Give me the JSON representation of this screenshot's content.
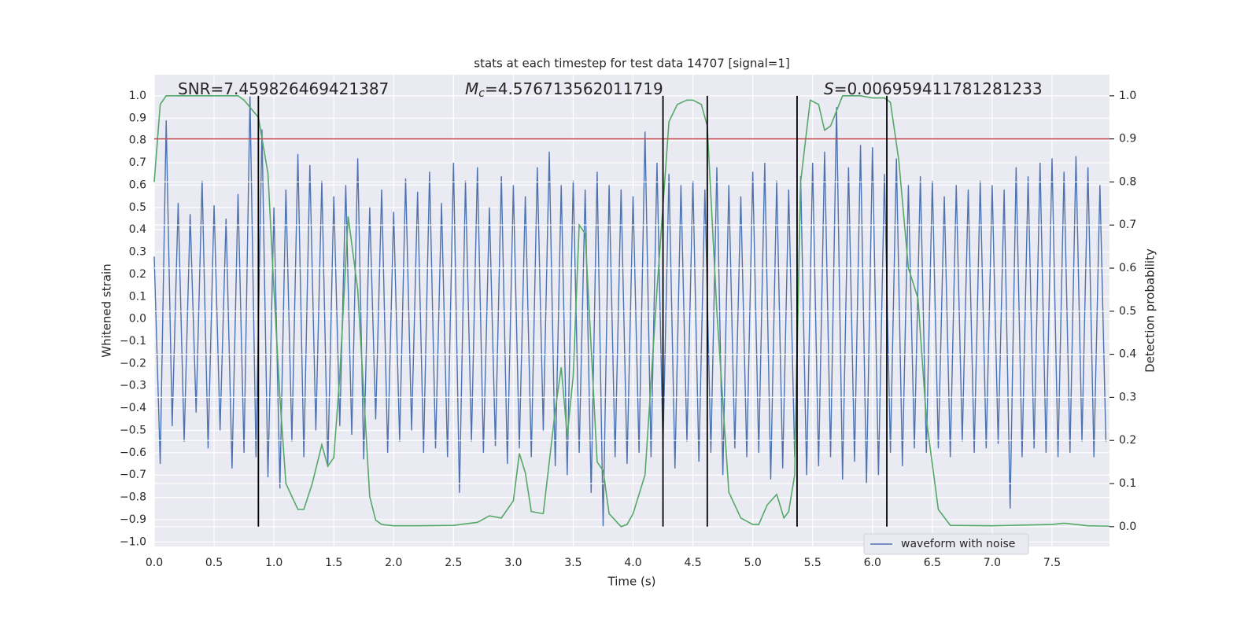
{
  "chart_data": {
    "type": "line",
    "title": "stats at each timestep for test data 14707 [signal=1]",
    "xlabel": "Time (s)",
    "ylabel": "Whitened strain",
    "y2label": "Detection probability",
    "annotations": [
      {
        "text": "SNR=7.459826469421387"
      },
      {
        "symbol": "M",
        "subscript": "c",
        "text": "=4.576713562011719"
      },
      {
        "symbol": "S",
        "text": "=0.006959411781281233"
      }
    ],
    "xlim": [
      0,
      7.98
    ],
    "ylim": [
      -1.02,
      1.095
    ],
    "y2lim": [
      -0.046,
      1.049
    ],
    "xticks": [
      {
        "value": 0,
        "label": "0.0"
      },
      0.5,
      {
        "value": 1,
        "label": "1.0"
      },
      1.5,
      {
        "value": 2,
        "label": "2.0"
      },
      2.5,
      {
        "value": 3,
        "label": "3.0"
      },
      3.5,
      {
        "value": 4,
        "label": "4.0"
      },
      4.5,
      {
        "value": 5,
        "label": "5.0"
      },
      5.5,
      {
        "value": 6,
        "label": "6.0"
      },
      6.5,
      {
        "value": 7,
        "label": "7.0"
      },
      7.5
    ],
    "yticks": [
      {
        "value": -1,
        "label": "−1.0"
      },
      {
        "value": -0.9,
        "label": "−0.9"
      },
      {
        "value": -0.8,
        "label": "−0.8"
      },
      {
        "value": -0.7,
        "label": "−0.7"
      },
      {
        "value": -0.6,
        "label": "−0.6"
      },
      {
        "value": -0.5,
        "label": "−0.5"
      },
      {
        "value": -0.4,
        "label": "−0.4"
      },
      {
        "value": -0.3,
        "label": "−0.3"
      },
      {
        "value": -0.2,
        "label": "−0.2"
      },
      {
        "value": -0.1,
        "label": "−0.1"
      },
      {
        "value": 0,
        "label": "0.0"
      },
      0.1,
      0.2,
      0.3,
      0.4,
      0.5,
      0.6,
      0.7,
      0.8,
      0.9,
      {
        "value": 1,
        "label": "1.0"
      }
    ],
    "y2ticks": [
      {
        "value": 0,
        "label": "0.0"
      },
      0.1,
      0.2,
      0.3,
      0.4,
      0.5,
      0.6,
      0.7,
      0.8,
      0.9,
      {
        "value": 1,
        "label": "1.0"
      }
    ],
    "grid": true,
    "legend": "lower right",
    "series": [
      {
        "name": "waveform with noise",
        "color": "#4c72b0",
        "x": [
          0,
          0.05,
          0.1,
          0.15,
          0.2,
          0.25,
          0.3,
          0.35,
          0.4,
          0.45,
          0.5,
          0.55,
          0.6,
          0.65,
          0.7,
          0.75,
          0.8,
          0.85,
          0.9,
          0.95,
          1,
          1.05,
          1.1,
          1.15,
          1.2,
          1.25,
          1.3,
          1.35,
          1.4,
          1.45,
          1.5,
          1.55,
          1.6,
          1.65,
          1.7,
          1.75,
          1.8,
          1.85,
          1.9,
          1.95,
          2,
          2.05,
          2.1,
          2.15,
          2.2,
          2.25,
          2.3,
          2.35,
          2.4,
          2.45,
          2.5,
          2.55,
          2.6,
          2.65,
          2.7,
          2.75,
          2.8,
          2.85,
          2.9,
          2.95,
          3,
          3.05,
          3.1,
          3.15,
          3.2,
          3.25,
          3.3,
          3.35,
          3.4,
          3.45,
          3.5,
          3.55,
          3.6,
          3.65,
          3.7,
          3.75,
          3.8,
          3.85,
          3.9,
          3.95,
          4,
          4.05,
          4.1,
          4.15,
          4.2,
          4.25,
          4.3,
          4.35,
          4.4,
          4.45,
          4.5,
          4.55,
          4.6,
          4.65,
          4.7,
          4.75,
          4.8,
          4.85,
          4.9,
          4.95,
          5,
          5.05,
          5.1,
          5.15,
          5.2,
          5.25,
          5.3,
          5.35,
          5.4,
          5.45,
          5.5,
          5.55,
          5.6,
          5.65,
          5.7,
          5.75,
          5.8,
          5.85,
          5.9,
          5.95,
          6,
          6.05,
          6.1,
          6.15,
          6.2,
          6.25,
          6.3,
          6.35,
          6.4,
          6.45,
          6.5,
          6.55,
          6.6,
          6.65,
          6.7,
          6.75,
          6.8,
          6.85,
          6.9,
          6.95,
          7,
          7.05,
          7.1,
          7.15,
          7.2,
          7.25,
          7.3,
          7.35,
          7.4,
          7.45,
          7.5,
          7.55,
          7.6,
          7.65,
          7.7,
          7.75,
          7.8,
          7.85,
          7.9,
          7.95
        ],
        "values": [
          0.28,
          -0.65,
          0.89,
          -0.48,
          0.52,
          -0.55,
          0.47,
          -0.42,
          0.62,
          -0.58,
          0.51,
          -0.5,
          0.45,
          -0.67,
          0.56,
          -0.6,
          1.0,
          -0.62,
          0.85,
          -0.71,
          0.5,
          -0.76,
          0.58,
          -0.55,
          0.74,
          -0.62,
          0.69,
          -0.5,
          0.62,
          -0.66,
          0.55,
          -0.48,
          0.6,
          -0.52,
          0.72,
          -0.63,
          0.5,
          -0.45,
          0.58,
          -0.6,
          0.48,
          -0.55,
          0.63,
          -0.5,
          0.57,
          -0.6,
          0.66,
          -0.58,
          0.52,
          -0.62,
          0.7,
          -0.78,
          0.62,
          -0.55,
          0.68,
          -0.6,
          0.5,
          -0.57,
          0.64,
          -0.65,
          0.6,
          -0.58,
          0.55,
          -0.62,
          0.68,
          -0.5,
          0.75,
          -0.66,
          0.6,
          -0.7,
          0.62,
          -0.6,
          0.58,
          -0.78,
          0.66,
          -0.93,
          0.6,
          -0.62,
          0.58,
          -0.65,
          0.55,
          -0.6,
          0.84,
          -0.62,
          0.7,
          -0.58,
          0.65,
          -0.67,
          0.6,
          -0.55,
          0.62,
          -0.64,
          0.58,
          -0.6,
          0.68,
          -0.7,
          0.6,
          -0.58,
          0.55,
          -0.62,
          0.66,
          -0.6,
          0.7,
          -0.72,
          0.62,
          -0.67,
          0.58,
          -0.62,
          0.64,
          -0.7,
          0.7,
          -0.66,
          0.75,
          -0.62,
          0.95,
          -0.72,
          0.68,
          -0.64,
          0.78,
          -0.74,
          0.77,
          -0.7,
          0.65,
          -0.6,
          0.72,
          -0.66,
          0.6,
          -0.58,
          0.64,
          -0.6,
          0.62,
          -0.58,
          0.55,
          -0.62,
          0.6,
          -0.55,
          0.58,
          -0.6,
          0.62,
          -0.58,
          0.6,
          -0.56,
          0.58,
          -0.85,
          0.68,
          -0.62,
          0.64,
          -0.58,
          0.7,
          -0.6,
          0.72,
          -0.62,
          0.66,
          -0.6,
          0.73,
          -0.55,
          0.68,
          -0.62,
          0.6,
          -0.55
        ]
      },
      {
        "color": "#55a868",
        "axis": "y2",
        "x": [
          0,
          0.05,
          0.1,
          0.2,
          0.7,
          0.75,
          0.87,
          0.95,
          1,
          1.05,
          1.1,
          1.2,
          1.25,
          1.32,
          1.4,
          1.45,
          1.5,
          1.55,
          1.62,
          1.7,
          1.8,
          1.85,
          1.9,
          2,
          2.2,
          2.5,
          2.7,
          2.8,
          2.9,
          2.95,
          3,
          3.05,
          3.1,
          3.15,
          3.25,
          3.35,
          3.4,
          3.45,
          3.5,
          3.55,
          3.6,
          3.7,
          3.75,
          3.8,
          3.9,
          3.95,
          4,
          4.1,
          4.2,
          4.3,
          4.37,
          4.45,
          4.5,
          4.57,
          4.62,
          4.7,
          4.8,
          4.9,
          5,
          5.05,
          5.12,
          5.2,
          5.26,
          5.3,
          5.35,
          5.4,
          5.48,
          5.55,
          5.6,
          5.65,
          5.75,
          5.9,
          6,
          6.1,
          6.15,
          6.22,
          6.3,
          6.38,
          6.45,
          6.55,
          6.65,
          7,
          7.5,
          7.6,
          7.8,
          7.98
        ],
        "values": [
          0.8,
          0.98,
          1.0,
          1.0,
          1.0,
          0.99,
          0.95,
          0.82,
          0.55,
          0.3,
          0.1,
          0.04,
          0.04,
          0.1,
          0.19,
          0.14,
          0.16,
          0.35,
          0.72,
          0.55,
          0.07,
          0.015,
          0.005,
          0.002,
          0.002,
          0.003,
          0.01,
          0.025,
          0.02,
          0.04,
          0.06,
          0.17,
          0.125,
          0.035,
          0.03,
          0.27,
          0.37,
          0.21,
          0.35,
          0.7,
          0.68,
          0.15,
          0.13,
          0.03,
          0.0,
          0.005,
          0.03,
          0.12,
          0.55,
          0.94,
          0.98,
          0.99,
          0.99,
          0.98,
          0.93,
          0.5,
          0.08,
          0.02,
          0.005,
          0.005,
          0.05,
          0.075,
          0.02,
          0.035,
          0.12,
          0.8,
          0.99,
          0.98,
          0.92,
          0.93,
          1.0,
          1.0,
          0.995,
          0.995,
          0.985,
          0.85,
          0.6,
          0.53,
          0.25,
          0.04,
          0.003,
          0.002,
          0.005,
          0.008,
          0.002,
          0.001
        ]
      }
    ],
    "hlines": [
      {
        "value": 0.9,
        "axis": "y2",
        "color": "#c44e52"
      }
    ],
    "vlines": {
      "x": [
        0.87,
        4.25,
        4.62,
        5.37,
        6.12
      ],
      "ymin": 0,
      "ymax": 1,
      "axis": "y2",
      "color": "#000000"
    }
  }
}
